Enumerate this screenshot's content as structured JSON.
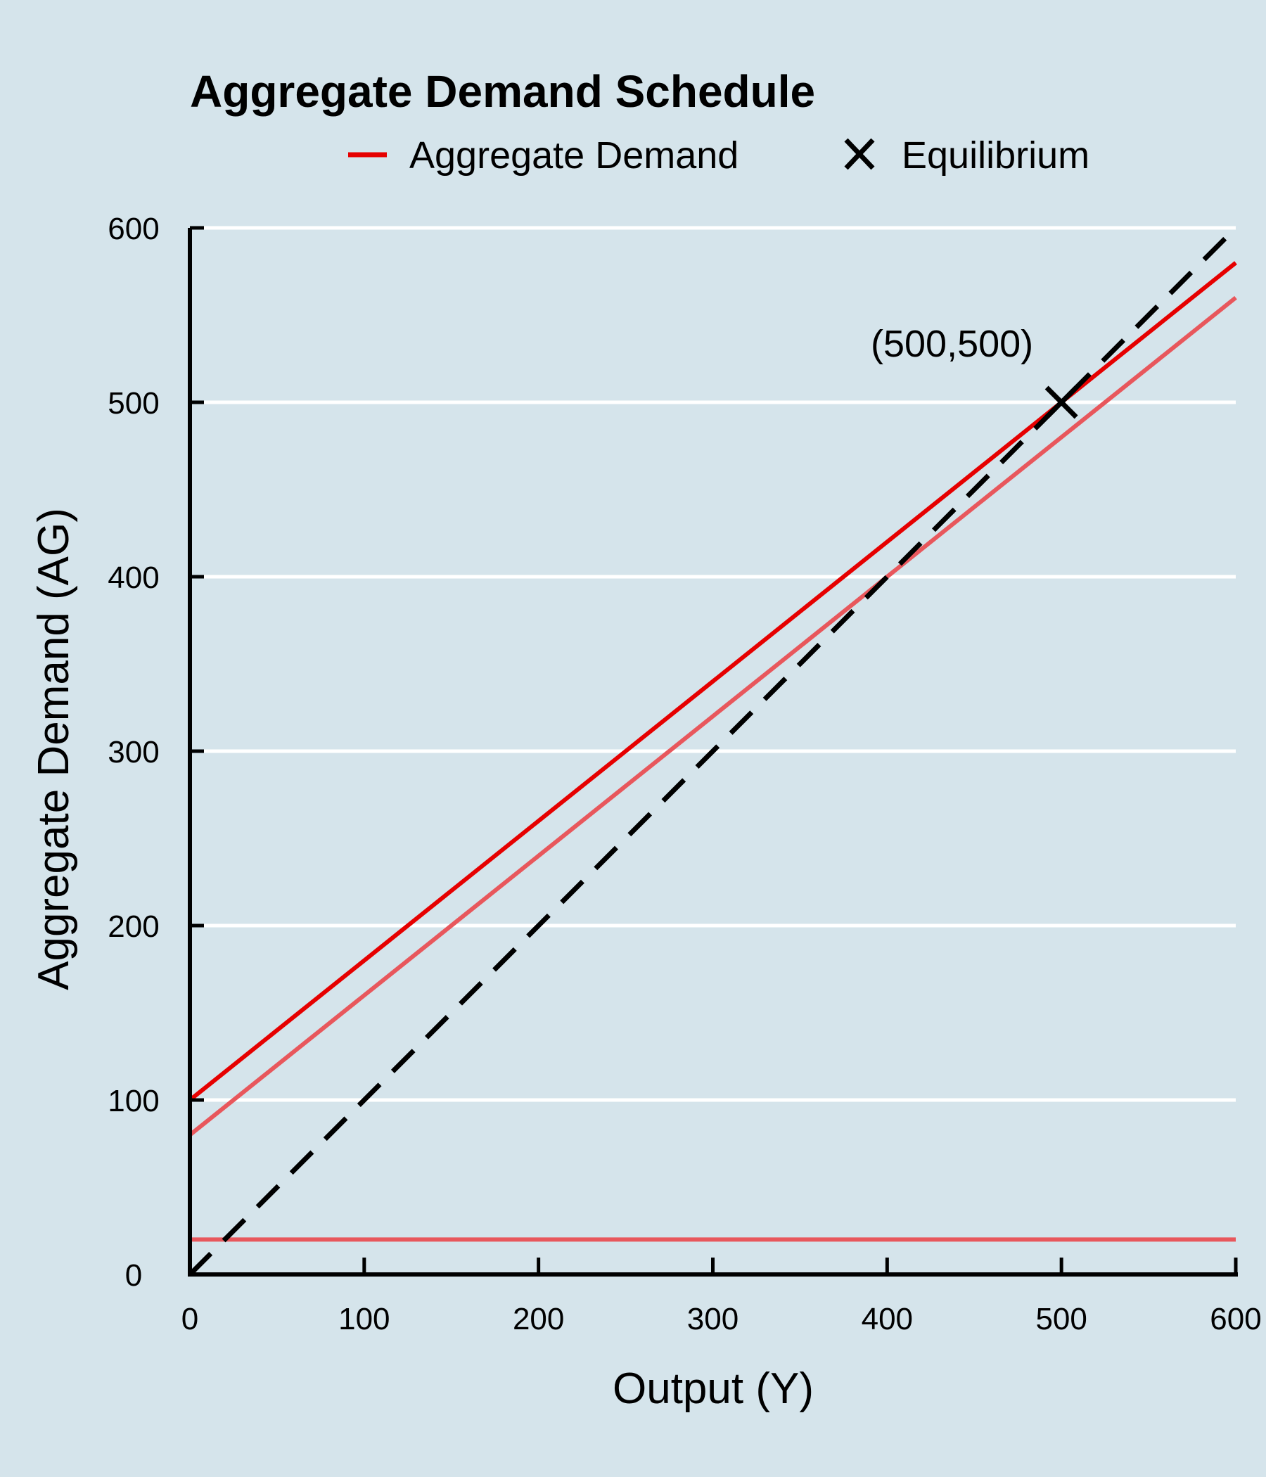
{
  "chart_data": {
    "type": "line",
    "title": "Aggregate Demand Schedule",
    "xlabel": "Output (Y)",
    "ylabel": "Aggregate Demand (AG)",
    "xlim": [
      0,
      600
    ],
    "ylim": [
      0,
      600
    ],
    "xticks": [
      "0",
      "100",
      "200",
      "300",
      "400",
      "500",
      "600"
    ],
    "yticks": [
      "0",
      "100",
      "200",
      "300",
      "400",
      "500",
      "600"
    ],
    "grid": "horizontal",
    "legend": {
      "placement": "top",
      "entries": [
        "Aggregate Demand",
        "Equilibrium"
      ]
    },
    "series": [
      {
        "name": "Aggregate Demand",
        "color": "#e60000",
        "style": "solid",
        "x": [
          0,
          600
        ],
        "y": [
          100,
          580
        ]
      },
      {
        "color": "#e8575c",
        "style": "solid",
        "x": [
          0,
          600
        ],
        "y": [
          80,
          560
        ]
      },
      {
        "color": "#e8575c",
        "style": "solid",
        "x": [
          0,
          600
        ],
        "y": [
          20,
          20
        ]
      },
      {
        "color": "#000000",
        "style": "dashed",
        "x": [
          0,
          600
        ],
        "y": [
          0,
          600
        ]
      }
    ],
    "points": [
      {
        "name": "Equilibrium",
        "marker": "x",
        "color": "#000000",
        "x": 500,
        "y": 500,
        "label": "(500,500)"
      }
    ]
  }
}
